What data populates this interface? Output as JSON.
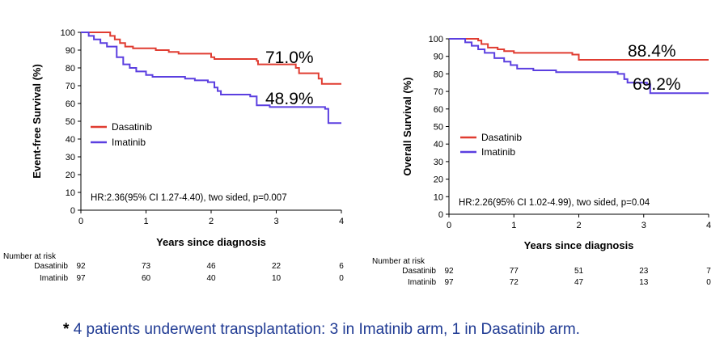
{
  "chart_data": [
    {
      "type": "line",
      "step": true,
      "ylabel": "Event-free Survival (%)",
      "xlabel": "Years since diagnosis",
      "xlim": [
        0,
        4
      ],
      "ylim": [
        0,
        100
      ],
      "xticks": [
        0,
        1,
        2,
        3,
        4
      ],
      "yticks": [
        0,
        10,
        20,
        30,
        40,
        50,
        60,
        70,
        80,
        90,
        100
      ],
      "annotation": "HR:2.36(95% CI 1.27-4.40), two sided, p=0.007",
      "legend_placement": "middle-left",
      "series": [
        {
          "name": "Dasatinib",
          "color": "#e03c31",
          "end_label": "71.0%",
          "points": [
            [
              0,
              100
            ],
            [
              0.38,
              100
            ],
            [
              0.45,
              98
            ],
            [
              0.52,
              96
            ],
            [
              0.6,
              94
            ],
            [
              0.68,
              92
            ],
            [
              0.8,
              91
            ],
            [
              1.15,
              90
            ],
            [
              1.35,
              89
            ],
            [
              1.5,
              88
            ],
            [
              2.0,
              86
            ],
            [
              2.05,
              85
            ],
            [
              2.7,
              84
            ],
            [
              2.72,
              82
            ],
            [
              3.3,
              80
            ],
            [
              3.35,
              77
            ],
            [
              3.65,
              74
            ],
            [
              3.7,
              71
            ],
            [
              4.0,
              71
            ]
          ]
        },
        {
          "name": "Imatinib",
          "color": "#5b3fe0",
          "end_label": "48.9%",
          "points": [
            [
              0,
              100
            ],
            [
              0.12,
              98
            ],
            [
              0.2,
              96
            ],
            [
              0.3,
              94
            ],
            [
              0.4,
              92
            ],
            [
              0.55,
              86
            ],
            [
              0.65,
              82
            ],
            [
              0.75,
              80
            ],
            [
              0.85,
              78
            ],
            [
              1.0,
              76
            ],
            [
              1.1,
              75
            ],
            [
              1.6,
              74
            ],
            [
              1.75,
              73
            ],
            [
              1.95,
              72
            ],
            [
              2.05,
              69
            ],
            [
              2.1,
              67
            ],
            [
              2.15,
              65
            ],
            [
              2.6,
              64
            ],
            [
              2.7,
              59
            ],
            [
              2.9,
              58
            ],
            [
              3.75,
              57
            ],
            [
              3.8,
              49
            ],
            [
              4.0,
              49
            ]
          ]
        }
      ],
      "risk_table": {
        "header": "Number at risk",
        "rows": [
          {
            "label": "Dasatinib",
            "values": [
              "92",
              "73",
              "46",
              "22",
              "6"
            ]
          },
          {
            "label": "Imatinib",
            "values": [
              "97",
              "60",
              "40",
              "10",
              "0"
            ]
          }
        ]
      }
    },
    {
      "type": "line",
      "step": true,
      "ylabel": "Overall Survival (%)",
      "xlabel": "Years since diagnosis",
      "xlim": [
        0,
        4
      ],
      "ylim": [
        0,
        100
      ],
      "xticks": [
        0,
        1,
        2,
        3,
        4
      ],
      "yticks": [
        0,
        10,
        20,
        30,
        40,
        50,
        60,
        70,
        80,
        90,
        100
      ],
      "annotation": "HR:2.26(95% CI 1.02-4.99), two sided, p=0.04",
      "legend_placement": "middle-left",
      "series": [
        {
          "name": "Dasatinib",
          "color": "#e03c31",
          "end_label": "88.4%",
          "points": [
            [
              0,
              100
            ],
            [
              0.45,
              99
            ],
            [
              0.5,
              97
            ],
            [
              0.6,
              95
            ],
            [
              0.75,
              94
            ],
            [
              0.85,
              93
            ],
            [
              1.0,
              92
            ],
            [
              1.9,
              91
            ],
            [
              2.0,
              88
            ],
            [
              4.0,
              88
            ]
          ]
        },
        {
          "name": "Imatinib",
          "color": "#5b3fe0",
          "end_label": "69.2%",
          "points": [
            [
              0,
              100
            ],
            [
              0.25,
              98
            ],
            [
              0.35,
              96
            ],
            [
              0.45,
              94
            ],
            [
              0.55,
              92
            ],
            [
              0.7,
              89
            ],
            [
              0.85,
              87
            ],
            [
              0.95,
              85
            ],
            [
              1.05,
              83
            ],
            [
              1.3,
              82
            ],
            [
              1.65,
              81
            ],
            [
              2.6,
              80
            ],
            [
              2.7,
              77
            ],
            [
              2.75,
              75
            ],
            [
              3.05,
              74
            ],
            [
              3.1,
              69
            ],
            [
              4.0,
              69
            ]
          ]
        }
      ],
      "risk_table": {
        "header": "Number at risk",
        "rows": [
          {
            "label": "Dasatinib",
            "values": [
              "92",
              "77",
              "51",
              "23",
              "7"
            ]
          },
          {
            "label": "Imatinib",
            "values": [
              "97",
              "72",
              "47",
              "13",
              "0"
            ]
          }
        ]
      }
    }
  ],
  "footnote": {
    "star": "*",
    "text": "4 patients underwent transplantation: 3 in Imatinib arm, 1 in Dasatinib arm."
  }
}
